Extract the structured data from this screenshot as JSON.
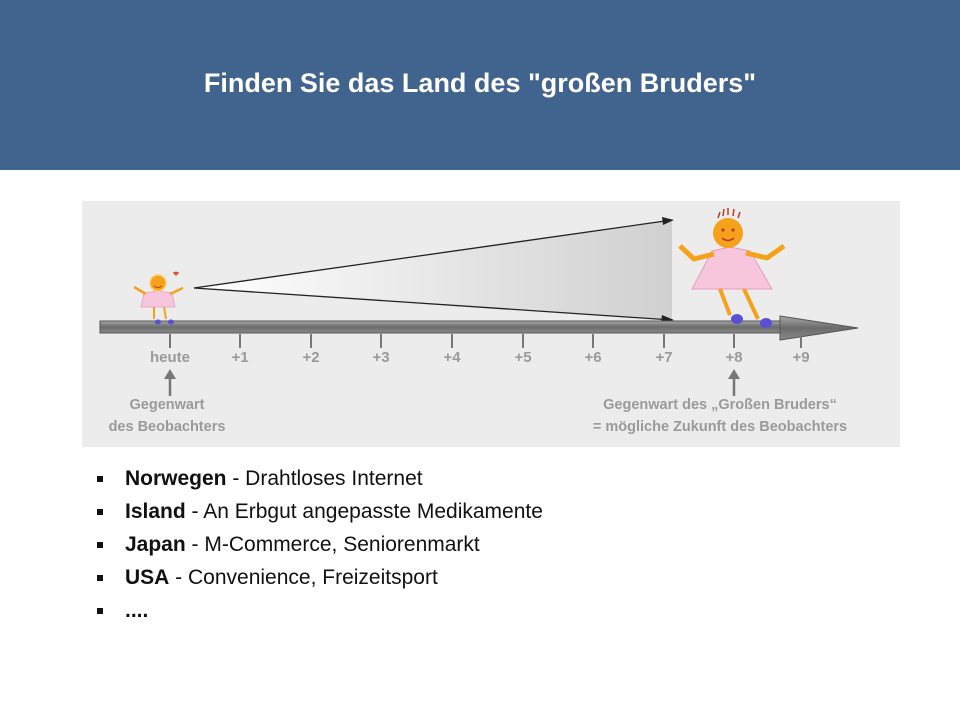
{
  "slide": {
    "title": "Finden Sie das Land des \"großen Bruders\""
  },
  "timeline": {
    "ticks": [
      "heute",
      "+1",
      "+2",
      "+3",
      "+4",
      "+5",
      "+6",
      "+7",
      "+8",
      "+9"
    ],
    "observer_note": {
      "line1": "Gegenwart",
      "line2": "des Beobachters"
    },
    "big_brother_note": {
      "line1": "Gegenwart des „Großen Bruders“",
      "line2": "= mögliche Zukunft des Beobachters"
    }
  },
  "bullets": [
    {
      "country": "Norwegen",
      "text": " - Drahtloses Internet"
    },
    {
      "country": "Island",
      "text": " - An Erbgut angepasste Medikamente"
    },
    {
      "country": "Japan",
      "text": " - M-Commerce, Seniorenmarkt"
    },
    {
      "country": "USA",
      "text": " - Convenience, Freizeitsport"
    },
    {
      "country": "....",
      "text": ""
    }
  ],
  "colors": {
    "header": "#41648e",
    "panel": "#ececec",
    "label_grey": "#9a9a9a",
    "girl_dress": "#f7c6dc",
    "girl_skin": "#f5a21a",
    "shoes": "#5a4fd6"
  }
}
